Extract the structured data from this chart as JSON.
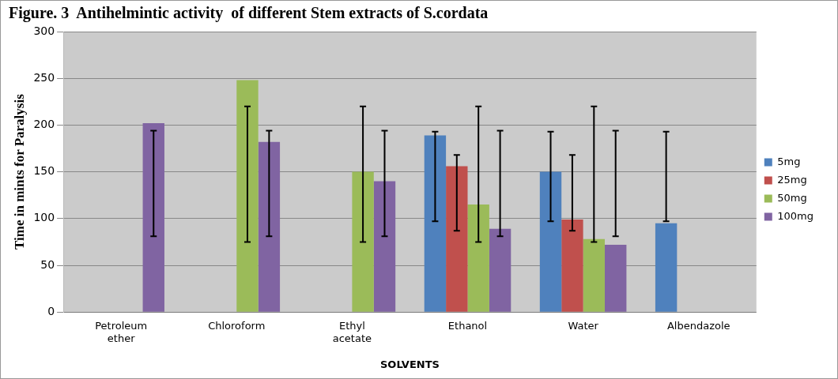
{
  "chart_data": {
    "type": "bar",
    "title": "Figure. 3  Antihelmintic activity  of different Stem extracts of S.cordata",
    "xlabel": "SOLVENTS",
    "ylabel": "Time in mints for Paralysis",
    "categories": [
      "Petroleum ether",
      "Chloroform",
      "Ethyl acetate",
      "Ethanol",
      "Water",
      "Albendazole"
    ],
    "series": [
      {
        "name": "5mg",
        "color": "#4f81bd",
        "values": [
          null,
          null,
          null,
          189,
          150,
          95
        ],
        "errors": [
          null,
          null,
          null,
          [
            97,
            193
          ],
          [
            97,
            193
          ],
          [
            97,
            193
          ]
        ]
      },
      {
        "name": "25mg",
        "color": "#c0504d",
        "values": [
          null,
          null,
          null,
          156,
          99,
          null
        ],
        "errors": [
          null,
          null,
          null,
          [
            87,
            168
          ],
          [
            87,
            168
          ],
          null
        ]
      },
      {
        "name": "50mg",
        "color": "#9bbb59",
        "values": [
          null,
          248,
          150,
          115,
          78,
          null
        ],
        "errors": [
          null,
          [
            75,
            220
          ],
          [
            75,
            220
          ],
          [
            75,
            220
          ],
          [
            75,
            220
          ],
          null
        ]
      },
      {
        "name": "100mg",
        "color": "#8064a2",
        "values": [
          202,
          182,
          140,
          89,
          72,
          null
        ],
        "errors": [
          [
            81,
            194
          ],
          [
            81,
            194
          ],
          [
            81,
            194
          ],
          [
            81,
            194
          ],
          [
            81,
            194
          ],
          null
        ]
      }
    ],
    "ylim": [
      0,
      300
    ],
    "yticks": [
      0,
      50,
      100,
      150,
      200,
      250,
      300
    ],
    "grid": "y",
    "legend": "right"
  }
}
